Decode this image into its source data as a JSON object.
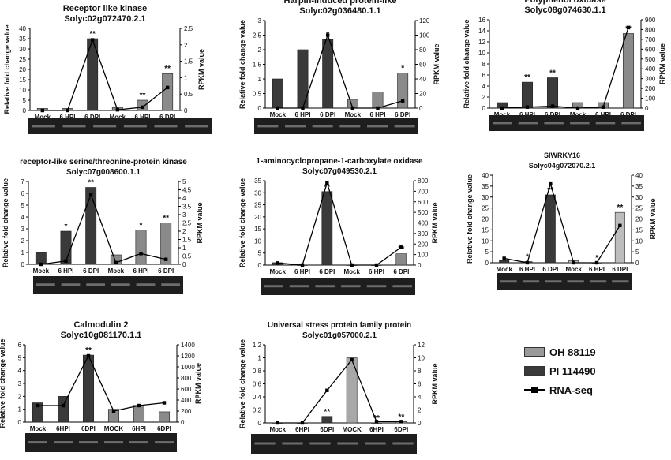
{
  "legend": [
    {
      "label": "OH 88119",
      "color": "#9a9a9a"
    },
    {
      "label": "PI 114490",
      "color": "#3a3a3a"
    },
    {
      "label": "RNA-seq",
      "color": "#000000"
    }
  ],
  "chart_data": [
    {
      "type": "bar",
      "title": "Receptor like kinase",
      "subtitle": "Solyc02g072470.2.1",
      "ylabel": "Relative fold change value",
      "y2label": "RPKM value",
      "categories": [
        "Mock",
        "6 HPI",
        "6 DPI",
        "Mock",
        "6 HPI",
        "6 DPI"
      ],
      "ylim": [
        0,
        40
      ],
      "yticks": [
        0,
        5,
        10,
        15,
        20,
        25,
        30,
        35,
        40
      ],
      "y2lim": [
        0,
        2.5
      ],
      "y2ticks": [
        "0",
        "0.5",
        "1",
        "1.5",
        "2",
        "2.5"
      ],
      "series": [
        {
          "name": "OH 88119",
          "values": [
            null,
            null,
            null,
            1.5,
            5,
            18
          ]
        },
        {
          "name": "PI 114490",
          "values": [
            1,
            1,
            35,
            null,
            null,
            null
          ]
        },
        {
          "name": "RNA-seq",
          "values": [
            0,
            0,
            2.15,
            0.02,
            0.1,
            0.7
          ]
        }
      ],
      "bar_colors": [
        "#8a8a8a",
        "#8a8a8a",
        "#3a3a3a",
        "#8a8a8a",
        "#8a8a8a",
        "#8a8a8a"
      ],
      "labels": [
        "",
        "",
        "**",
        "",
        "**",
        "**"
      ]
    },
    {
      "type": "bar",
      "title": "Harpin-induced protein-like",
      "subtitle": "Solyc02g036480.1.1",
      "ylabel": "Relative fold change value",
      "y2label": "RPKM value",
      "categories": [
        "Mock",
        "6 HPI",
        "6 DPI",
        "Mock",
        "6 HPI",
        "6 DPI"
      ],
      "ylim": [
        0,
        3
      ],
      "yticks": [
        "0",
        "0.5",
        "1",
        "1.5",
        "2",
        "2.5",
        "3"
      ],
      "y2lim": [
        0,
        120
      ],
      "y2ticks": [
        0,
        20,
        40,
        60,
        80,
        100,
        120
      ],
      "series": [
        {
          "name": "OH 88119",
          "values": [
            null,
            null,
            null,
            0.3,
            0.55,
            1.2
          ]
        },
        {
          "name": "PI 114490",
          "values": [
            1.0,
            2.0,
            2.35,
            null,
            null,
            null
          ]
        },
        {
          "name": "RNA-seq",
          "values": [
            0,
            0,
            100,
            0,
            0,
            10
          ]
        }
      ],
      "bar_colors": [
        "#3a3a3a",
        "#3a3a3a",
        "#3a3a3a",
        "#8a8a8a",
        "#8a8a8a",
        "#8a8a8a"
      ],
      "labels": [
        "",
        "",
        "*",
        "",
        "",
        "*"
      ]
    },
    {
      "type": "bar",
      "title": "Polyphenol oxidase",
      "subtitle": "Solyc08g074630.1.1",
      "ylabel": "Relative fold change value",
      "y2label": "RPKM value",
      "categories": [
        "Mock",
        "6 HPI",
        "6 DPI",
        "Mock",
        "6 HPI",
        "6 DPI"
      ],
      "ylim": [
        0,
        16
      ],
      "yticks": [
        0,
        2,
        4,
        6,
        8,
        10,
        12,
        14,
        16
      ],
      "y2lim": [
        0,
        900
      ],
      "y2ticks": [
        0,
        100,
        200,
        300,
        400,
        500,
        600,
        700,
        800,
        900
      ],
      "series": [
        {
          "name": "OH 88119",
          "values": [
            null,
            null,
            null,
            1,
            1,
            13.5
          ]
        },
        {
          "name": "PI 114490",
          "values": [
            1,
            4.7,
            5.5,
            null,
            null,
            null
          ]
        },
        {
          "name": "RNA-seq",
          "values": [
            0,
            10,
            20,
            0,
            10,
            820
          ]
        }
      ],
      "bar_colors": [
        "#3a3a3a",
        "#3a3a3a",
        "#3a3a3a",
        "#8a8a8a",
        "#8a8a8a",
        "#8a8a8a"
      ],
      "labels": [
        "",
        "**",
        "**",
        "",
        "",
        "**"
      ]
    },
    {
      "type": "bar",
      "title": "receptor-like serine/threonine-protein kinase",
      "subtitle": "Solyc07g008600.1.1",
      "ylabel": "Relative fold change value",
      "y2label": "RPKM value",
      "categories": [
        "Mock",
        "6 HPI",
        "6 DPI",
        "Mock",
        "6 HPI",
        "6 DPI"
      ],
      "ylim": [
        0,
        7
      ],
      "yticks": [
        0,
        1,
        2,
        3,
        4,
        5,
        6,
        7
      ],
      "y2lim": [
        0,
        5
      ],
      "y2ticks": [
        "0",
        "0.5",
        "1",
        "1.5",
        "2",
        "2.5",
        "3",
        "3.5",
        "4",
        "4.5",
        "5"
      ],
      "series": [
        {
          "name": "OH 88119",
          "values": [
            null,
            null,
            null,
            0.8,
            2.9,
            3.5
          ]
        },
        {
          "name": "PI 114490",
          "values": [
            1,
            2.8,
            6.5,
            null,
            null,
            null
          ]
        },
        {
          "name": "RNA-seq",
          "values": [
            0,
            0.2,
            4.2,
            0.1,
            0.65,
            0.3
          ]
        }
      ],
      "bar_colors": [
        "#3a3a3a",
        "#3a3a3a",
        "#3a3a3a",
        "#8a8a8a",
        "#8a8a8a",
        "#8a8a8a"
      ],
      "labels": [
        "",
        "*",
        "**",
        "",
        "*",
        "**"
      ]
    },
    {
      "type": "bar",
      "title": "1-aminocyclopropane-1-carboxylate oxidase",
      "subtitle": "Solyc07g049530.2.1",
      "ylabel": "Relative fold change value",
      "y2label": "RPKM value",
      "categories": [
        "Mock",
        "6 HPI",
        "6 DPI",
        "Mock",
        "6 HPI",
        "6 DPI"
      ],
      "ylim": [
        0,
        35
      ],
      "yticks": [
        0,
        5,
        10,
        15,
        20,
        25,
        30,
        35
      ],
      "y2lim": [
        0,
        800
      ],
      "y2ticks": [
        0,
        100,
        200,
        300,
        400,
        500,
        600,
        700,
        800
      ],
      "series": [
        {
          "name": "OH 88119",
          "values": [
            null,
            null,
            null,
            0,
            0,
            4.7
          ]
        },
        {
          "name": "PI 114490",
          "values": [
            1,
            0,
            30.5,
            null,
            null,
            null
          ]
        },
        {
          "name": "RNA-seq",
          "values": [
            20,
            0,
            780,
            0,
            0,
            170
          ]
        }
      ],
      "bar_colors": [
        "#3a3a3a",
        "#3a3a3a",
        "#3a3a3a",
        "#8a8a8a",
        "#8a8a8a",
        "#8a8a8a"
      ],
      "labels": [
        "",
        "",
        "**",
        "",
        "",
        "**"
      ]
    },
    {
      "type": "bar",
      "title": "SlWRKY16",
      "subtitle": "Solyc04g072070.2.1",
      "ylabel": "Relative fold change value",
      "y2label": "RPKM value",
      "categories": [
        "Mock",
        "6 HPI",
        "6 DPI",
        "Mock",
        "6 HPI",
        "6 DPI"
      ],
      "ylim": [
        0,
        40
      ],
      "yticks": [
        0,
        5,
        10,
        15,
        20,
        25,
        30,
        35,
        40
      ],
      "y2lim": [
        0,
        40
      ],
      "y2ticks": [
        0,
        5,
        10,
        15,
        20,
        25,
        30,
        35,
        40
      ],
      "series": [
        {
          "name": "OH 88119",
          "values": [
            null,
            null,
            null,
            1,
            0,
            23
          ]
        },
        {
          "name": "PI 114490",
          "values": [
            1,
            0.5,
            31,
            null,
            null,
            null
          ]
        },
        {
          "name": "RNA-seq",
          "values": [
            2,
            0,
            36,
            0,
            0,
            17
          ]
        }
      ],
      "bar_colors": [
        "#3a3a3a",
        "#3a3a3a",
        "#3a3a3a",
        "#bdbdbd",
        "#bdbdbd",
        "#bdbdbd"
      ],
      "labels": [
        "",
        "*",
        "**",
        "",
        "*",
        "**"
      ]
    },
    {
      "type": "bar",
      "title": "Calmodulin 2",
      "subtitle": "Solyc10g081170.1.1",
      "ylabel": "Relative fold change value",
      "y2label": "RPKM value",
      "categories": [
        "Mock",
        "6HPI",
        "6DPI",
        "MOCK",
        "6HPI",
        "6DPI"
      ],
      "ylim": [
        0,
        6
      ],
      "yticks": [
        0,
        1,
        2,
        3,
        4,
        5,
        6
      ],
      "y2lim": [
        0,
        1400
      ],
      "y2ticks": [
        0,
        200,
        400,
        600,
        800,
        1000,
        1200,
        1400
      ],
      "series": [
        {
          "name": "OH 88119",
          "values": [
            null,
            null,
            null,
            1.0,
            1.3,
            0.8
          ]
        },
        {
          "name": "PI 114490",
          "values": [
            1.5,
            2.0,
            5.2,
            null,
            null,
            null
          ]
        },
        {
          "name": "RNA-seq",
          "values": [
            300,
            300,
            1200,
            200,
            300,
            350
          ]
        }
      ],
      "bar_colors": [
        "#3a3a3a",
        "#3a3a3a",
        "#3a3a3a",
        "#8a8a8a",
        "#8a8a8a",
        "#8a8a8a"
      ],
      "labels": [
        "",
        "",
        "**",
        "",
        "",
        ""
      ]
    },
    {
      "type": "bar",
      "title": "Universal stress protein family protein",
      "subtitle": "Solyc01g057000.2.1",
      "ylabel": "Relative fold change value",
      "y2label": "RPKM value",
      "categories": [
        "Mock",
        "6HPI",
        "6DPI",
        "MOCK",
        "6HPI",
        "6DPI"
      ],
      "ylim": [
        0,
        1.2
      ],
      "yticks": [
        "0",
        "0.2",
        "0.4",
        "0.6",
        "0.8",
        "1",
        "1.2"
      ],
      "y2lim": [
        0,
        12
      ],
      "y2ticks": [
        0,
        2,
        4,
        6,
        8,
        10,
        12
      ],
      "series": [
        {
          "name": "OH 88119",
          "values": [
            null,
            null,
            null,
            1.0,
            0,
            0.02
          ]
        },
        {
          "name": "PI 114490",
          "values": [
            0,
            0,
            0.1,
            null,
            null,
            null
          ]
        },
        {
          "name": "RNA-seq",
          "values": [
            0,
            0,
            5,
            9.7,
            0.2,
            0.2
          ]
        }
      ],
      "bar_colors": [
        "#3a3a3a",
        "#3a3a3a",
        "#3a3a3a",
        "#a8a8a8",
        "#a8a8a8",
        "#a8a8a8"
      ],
      "labels": [
        "",
        "",
        "**",
        "",
        "**",
        "**"
      ]
    }
  ]
}
